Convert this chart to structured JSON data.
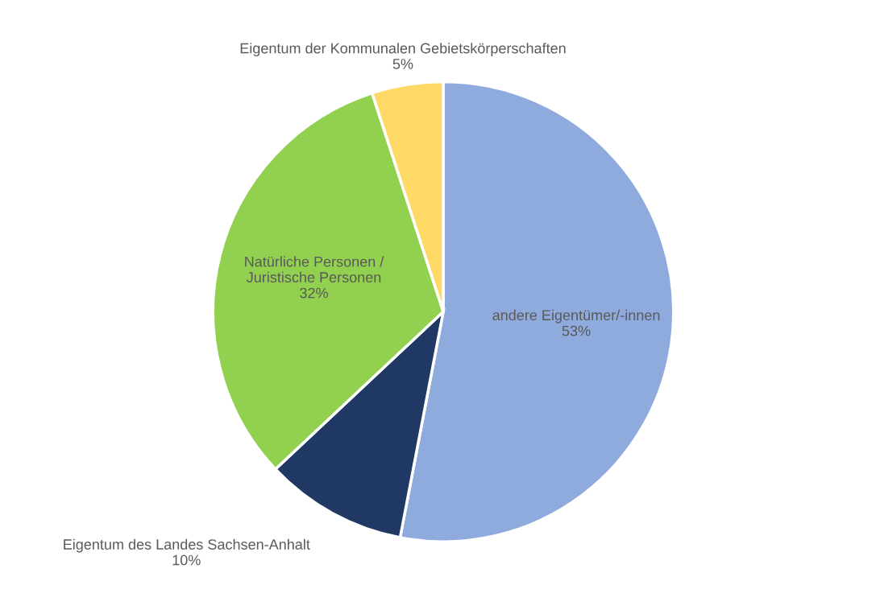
{
  "chart_data": {
    "type": "pie",
    "categories": [
      "andere Eigentümer/-innen",
      "Eigentum des Landes Sachsen-Anhalt",
      "Natürliche Personen / Juristische Personen",
      "Eigentum der Kommunalen Gebietskörperschaften"
    ],
    "values": [
      53,
      10,
      32,
      5
    ],
    "value_labels": [
      "53%",
      "10%",
      "32%",
      "5%"
    ],
    "colors": [
      "#8faadc",
      "#1f3864",
      "#92d050",
      "#ffd966"
    ],
    "legend": false
  }
}
